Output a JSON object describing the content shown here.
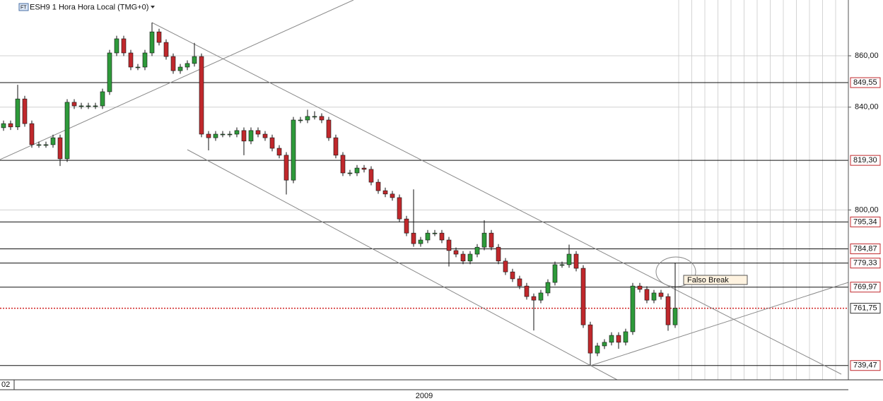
{
  "chart_data": {
    "type": "candlestick",
    "title": "ESH9 1 Hora Hora Local (TMG+0)",
    "x_start_label": "02",
    "x_period_label": "2009",
    "annotation": "Falso Break",
    "open": [
      832.0,
      833.6,
      832.3,
      843.2,
      833.6,
      825.4,
      825.4,
      825.4,
      828.1,
      819.9,
      841.9,
      840.5,
      840.5,
      840.5,
      840.5,
      846.0,
      861.1,
      866.6,
      861.1,
      855.6,
      855.6,
      861.1,
      869.3,
      865.2,
      859.7,
      854.2,
      855.6,
      857.0,
      859.7,
      829.5,
      828.1,
      829.5,
      829.5,
      829.5,
      830.9,
      826.8,
      830.9,
      829.5,
      828.1,
      824.0,
      821.3,
      811.6,
      835.0,
      835.0,
      836.4,
      836.4,
      835.0,
      828.1,
      821.3,
      814.4,
      814.4,
      816.3,
      815.8,
      810.8,
      807.5,
      806.2,
      804.8,
      796.5,
      791.0,
      786.9,
      788.3,
      791.0,
      791.0,
      788.3,
      784.2,
      782.8,
      780.1,
      782.8,
      785.5,
      791.0,
      785.5,
      780.1,
      775.9,
      773.2,
      770.4,
      766.3,
      764.9,
      767.7,
      771.8,
      778.7,
      778.7,
      782.8,
      777.3,
      755.3,
      744.3,
      747.1,
      748.5,
      751.2,
      748.5,
      752.6,
      770.4,
      769.1,
      764.9,
      767.7,
      766.3,
      755.3
    ],
    "high": [
      834.8,
      834.8,
      848.7,
      844.4,
      834.8,
      826.6,
      826.6,
      829.3,
      829.3,
      843.1,
      843.1,
      841.7,
      841.7,
      841.7,
      847.2,
      862.3,
      867.8,
      867.8,
      862.3,
      856.8,
      862.3,
      872.9,
      870.5,
      866.4,
      860.9,
      856.8,
      858.2,
      865.0,
      860.9,
      830.7,
      830.7,
      830.7,
      830.7,
      832.1,
      832.1,
      832.1,
      832.1,
      830.7,
      829.3,
      825.2,
      822.5,
      836.2,
      836.2,
      839.0,
      838.4,
      837.6,
      836.2,
      829.3,
      822.5,
      815.6,
      817.5,
      817.5,
      817.0,
      812.0,
      808.7,
      807.4,
      806.0,
      797.7,
      808.0,
      789.5,
      792.2,
      792.2,
      792.2,
      789.5,
      785.4,
      784.0,
      784.0,
      786.7,
      796.0,
      792.2,
      786.7,
      781.3,
      777.1,
      774.4,
      771.6,
      767.5,
      768.9,
      773.0,
      779.9,
      779.9,
      786.5,
      784.0,
      778.5,
      756.5,
      748.3,
      749.7,
      752.4,
      752.4,
      753.8,
      771.6,
      771.6,
      770.3,
      768.9,
      768.9,
      767.5,
      779.5
    ],
    "low": [
      830.8,
      831.1,
      831.1,
      832.4,
      824.2,
      824.2,
      824.2,
      824.2,
      817.1,
      818.7,
      839.3,
      839.3,
      839.3,
      839.3,
      839.3,
      844.8,
      859.9,
      859.9,
      854.4,
      854.4,
      854.4,
      859.9,
      864.0,
      858.5,
      853.0,
      853.0,
      854.4,
      855.8,
      828.3,
      823.2,
      826.9,
      828.3,
      828.3,
      828.3,
      821.3,
      825.6,
      828.3,
      826.9,
      822.8,
      820.1,
      806.0,
      810.4,
      833.8,
      833.8,
      835.2,
      833.8,
      826.9,
      820.1,
      813.2,
      813.2,
      813.2,
      814.6,
      809.6,
      806.3,
      805.0,
      803.6,
      795.3,
      789.8,
      785.7,
      785.7,
      787.1,
      789.8,
      787.1,
      778.0,
      781.6,
      778.9,
      778.9,
      781.6,
      784.3,
      784.3,
      778.9,
      774.7,
      772.0,
      769.2,
      765.1,
      753.1,
      763.7,
      766.5,
      770.6,
      777.5,
      777.5,
      776.1,
      754.1,
      739.5,
      743.1,
      745.9,
      747.3,
      746.0,
      747.3,
      751.4,
      767.9,
      763.7,
      763.7,
      765.1,
      753.0,
      754.1
    ],
    "close": [
      833.6,
      832.3,
      843.2,
      833.6,
      825.4,
      825.4,
      825.4,
      828.1,
      819.9,
      841.9,
      840.5,
      840.5,
      840.5,
      840.5,
      846.0,
      861.1,
      866.6,
      861.1,
      855.6,
      855.6,
      861.1,
      869.3,
      865.2,
      859.7,
      854.2,
      855.6,
      857.0,
      859.7,
      829.5,
      828.1,
      829.5,
      829.5,
      829.5,
      830.9,
      826.8,
      830.9,
      829.5,
      828.1,
      824.0,
      821.3,
      811.6,
      835.0,
      835.0,
      836.4,
      836.4,
      835.0,
      828.1,
      821.3,
      814.4,
      814.4,
      816.3,
      815.8,
      810.8,
      807.5,
      806.2,
      804.8,
      796.5,
      791.0,
      786.9,
      788.3,
      791.0,
      791.0,
      788.3,
      784.2,
      782.8,
      780.1,
      782.8,
      785.5,
      791.0,
      785.5,
      780.1,
      775.9,
      773.2,
      770.4,
      766.3,
      764.9,
      767.7,
      771.8,
      778.7,
      778.7,
      782.8,
      777.3,
      755.3,
      744.3,
      747.1,
      748.5,
      751.2,
      748.5,
      752.6,
      770.4,
      769.1,
      764.9,
      767.7,
      766.3,
      755.3,
      761.75
    ],
    "up_color": "#2e9a3a",
    "down_color": "#c0282c",
    "ylim": [
      733.9,
      881.7
    ],
    "yticks": [
      {
        "value": 800,
        "label": "800,00"
      },
      {
        "value": 840,
        "label": "840,00"
      },
      {
        "value": 860,
        "label": "860,00"
      }
    ],
    "grid": true,
    "levels": [
      {
        "value": 849.55,
        "label": "849,55"
      },
      {
        "value": 819.3,
        "label": "819,30"
      },
      {
        "value": 795.34,
        "label": "795,34"
      },
      {
        "value": 784.87,
        "label": "784,87"
      },
      {
        "value": 779.33,
        "label": "779,33"
      },
      {
        "value": 769.97,
        "label": "769,97"
      },
      {
        "value": 739.47,
        "label": "739,47"
      }
    ],
    "last_price": {
      "value": 761.75,
      "label": "761,75"
    }
  }
}
